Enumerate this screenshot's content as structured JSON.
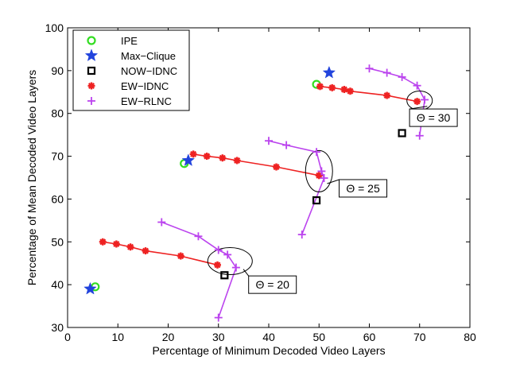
{
  "chart_data": {
    "type": "scatter",
    "xlabel": "Percentage of Minimum Decoded Video Layers",
    "ylabel": "Percentage of Mean Decoded Video Layers",
    "xlim": [
      0,
      80
    ],
    "ylim": [
      30,
      100
    ],
    "xticks": [
      0,
      10,
      20,
      30,
      40,
      50,
      60,
      70,
      80
    ],
    "yticks": [
      30,
      40,
      50,
      60,
      70,
      80,
      90,
      100
    ],
    "grid": false,
    "legend_position": "top-left",
    "series": [
      {
        "name": "IPE",
        "marker": "circle",
        "color": "#33dd22",
        "line": false,
        "points": [
          [
            5.5,
            39.5
          ],
          [
            23.2,
            68.3
          ],
          [
            49.5,
            86.8
          ]
        ]
      },
      {
        "name": "Max−Clique",
        "marker": "star",
        "color": "#2244dd",
        "line": false,
        "points": [
          [
            4.5,
            39.0
          ],
          [
            24.0,
            69.0
          ],
          [
            52.0,
            89.5
          ]
        ]
      },
      {
        "name": "NOW−IDNC",
        "marker": "square",
        "color": "#000000",
        "line": false,
        "points": [
          [
            31.2,
            42.2
          ],
          [
            49.5,
            59.7
          ],
          [
            66.5,
            75.4
          ]
        ]
      },
      {
        "name": "EW−IDNC",
        "marker": "asterisk",
        "color": "#ee2222",
        "line": true,
        "curves": [
          [
            [
              7.0,
              50.0
            ],
            [
              9.7,
              49.5
            ],
            [
              12.5,
              48.8
            ],
            [
              15.5,
              47.9
            ],
            [
              22.5,
              46.7
            ],
            [
              29.8,
              44.6
            ]
          ],
          [
            [
              25.0,
              70.5
            ],
            [
              27.7,
              70.0
            ],
            [
              30.8,
              69.6
            ],
            [
              33.7,
              69.0
            ],
            [
              41.5,
              67.5
            ],
            [
              50.0,
              65.5
            ]
          ],
          [
            [
              50.2,
              86.3
            ],
            [
              52.6,
              86.0
            ],
            [
              55.0,
              85.6
            ],
            [
              56.2,
              85.2
            ],
            [
              63.5,
              84.2
            ],
            [
              69.5,
              82.8
            ]
          ]
        ]
      },
      {
        "name": "EW−RLNC",
        "marker": "plus",
        "color": "#bb44ee",
        "line": true,
        "curves": [
          [
            [
              18.7,
              54.6
            ],
            [
              26.0,
              51.3
            ],
            [
              30.0,
              48.1
            ],
            [
              31.8,
              47.0
            ],
            [
              33.5,
              44.0
            ],
            [
              30.0,
              32.3
            ]
          ],
          [
            [
              40.0,
              73.6
            ],
            [
              43.5,
              72.6
            ],
            [
              49.5,
              71.0
            ],
            [
              50.5,
              66.5
            ],
            [
              51.0,
              64.9
            ],
            [
              46.6,
              51.7
            ]
          ],
          [
            [
              60.0,
              90.5
            ],
            [
              63.5,
              89.5
            ],
            [
              66.5,
              88.5
            ],
            [
              69.5,
              86.5
            ],
            [
              71.0,
              83.2
            ],
            [
              70.0,
              74.8
            ]
          ]
        ]
      }
    ],
    "annotations": [
      {
        "label": "Θ = 20",
        "ellipse_center": [
          32.3,
          45.5
        ],
        "box_anchor": [
          36.0,
          40.0
        ]
      },
      {
        "label": "Θ = 25",
        "ellipse_center": [
          50.0,
          66.5
        ],
        "box_anchor": [
          54.0,
          62.5
        ]
      },
      {
        "label": "Θ = 30",
        "ellipse_center": [
          70.0,
          83.0
        ],
        "box_anchor": [
          68.0,
          79.0
        ]
      }
    ]
  }
}
